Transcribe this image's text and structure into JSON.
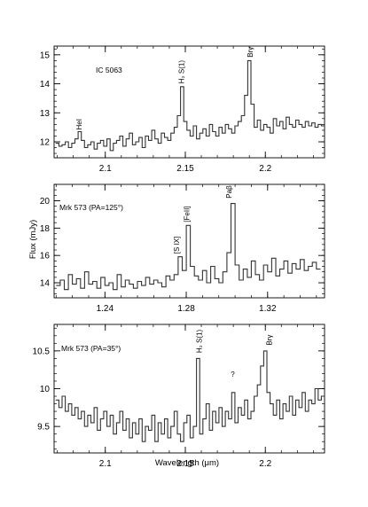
{
  "figure": {
    "ylabel": "Flux (mJy)",
    "xlabel": "Wavelength (μm)"
  },
  "chart_data": [
    {
      "type": "line",
      "title": "IC 5063",
      "xlim": [
        2.068,
        2.237
      ],
      "ylim": [
        11.45,
        15.3
      ],
      "xticks": [
        2.1,
        2.15,
        2.2
      ],
      "xtick_labels": [
        "2.1",
        "2.15",
        "2.2"
      ],
      "yticks": [
        12,
        13,
        14,
        15
      ],
      "ytick_labels": [
        "12",
        "13",
        "14",
        "15"
      ],
      "annotations": [
        {
          "text": "HeI",
          "x": 2.0835,
          "y": 12.35
        },
        {
          "text": "H₂ S(1)",
          "x": 2.1475,
          "y": 13.95
        },
        {
          "text": "Brγ",
          "x": 2.1905,
          "y": 14.85
        }
      ],
      "series": [
        {
          "x": [
            2.07,
            2.072,
            2.074,
            2.076,
            2.078,
            2.08,
            2.082,
            2.084,
            2.086,
            2.088,
            2.09,
            2.092,
            2.094,
            2.096,
            2.098,
            2.1,
            2.102,
            2.104,
            2.106,
            2.108,
            2.11,
            2.112,
            2.114,
            2.116,
            2.118,
            2.12,
            2.122,
            2.124,
            2.126,
            2.128,
            2.13,
            2.132,
            2.134,
            2.136,
            2.138,
            2.14,
            2.142,
            2.144,
            2.146,
            2.148,
            2.15,
            2.152,
            2.154,
            2.156,
            2.158,
            2.16,
            2.162,
            2.164,
            2.166,
            2.168,
            2.17,
            2.172,
            2.174,
            2.176,
            2.178,
            2.18,
            2.182,
            2.184,
            2.186,
            2.188,
            2.19,
            2.192,
            2.194,
            2.196,
            2.198,
            2.2,
            2.202,
            2.204,
            2.206,
            2.208,
            2.21,
            2.212,
            2.214,
            2.216,
            2.218,
            2.22,
            2.222,
            2.224,
            2.226,
            2.228,
            2.23,
            2.232,
            2.234,
            2.236
          ],
          "y": [
            11.95,
            11.85,
            11.9,
            12.0,
            11.8,
            11.95,
            12.1,
            12.35,
            12.05,
            11.8,
            11.9,
            12.0,
            11.75,
            11.95,
            12.05,
            11.85,
            12.1,
            11.7,
            11.95,
            12.05,
            12.2,
            11.85,
            12.1,
            12.3,
            11.9,
            12.0,
            12.15,
            11.8,
            12.2,
            12.05,
            12.4,
            12.1,
            11.95,
            12.3,
            12.15,
            12.05,
            12.3,
            12.5,
            12.9,
            13.9,
            12.7,
            12.4,
            12.2,
            12.55,
            12.1,
            12.3,
            12.45,
            12.2,
            12.6,
            12.35,
            12.2,
            12.5,
            12.3,
            12.6,
            12.45,
            12.3,
            12.55,
            12.7,
            12.9,
            13.6,
            14.8,
            13.3,
            12.5,
            12.75,
            12.4,
            12.6,
            12.5,
            12.3,
            12.8,
            12.55,
            12.7,
            12.45,
            12.85,
            12.6,
            12.5,
            12.75,
            12.6,
            12.5,
            12.7,
            12.55,
            12.65,
            12.5,
            12.6,
            12.55
          ]
        }
      ]
    },
    {
      "type": "line",
      "title": "Mrk 573 (PA=125°)",
      "xlim": [
        1.215,
        1.348
      ],
      "ylim": [
        12.9,
        21.2
      ],
      "xticks": [
        1.24,
        1.28,
        1.32
      ],
      "xtick_labels": [
        "1.24",
        "1.28",
        "1.32"
      ],
      "yticks": [
        14,
        16,
        18,
        20
      ],
      "ytick_labels": [
        "14",
        "16",
        "18",
        "20"
      ],
      "annotations": [
        {
          "text": "[S IX]",
          "x": 1.2752,
          "y": 16.0
        },
        {
          "text": "[FeII]",
          "x": 1.2803,
          "y": 18.3
        },
        {
          "text": "Paβ",
          "x": 1.3008,
          "y": 20.05
        }
      ],
      "series": [
        {
          "x": [
            1.217,
            1.219,
            1.221,
            1.223,
            1.225,
            1.227,
            1.229,
            1.231,
            1.233,
            1.235,
            1.237,
            1.239,
            1.241,
            1.243,
            1.245,
            1.247,
            1.249,
            1.251,
            1.253,
            1.255,
            1.257,
            1.259,
            1.261,
            1.263,
            1.265,
            1.267,
            1.269,
            1.271,
            1.273,
            1.275,
            1.277,
            1.279,
            1.281,
            1.283,
            1.285,
            1.287,
            1.289,
            1.291,
            1.293,
            1.295,
            1.297,
            1.299,
            1.301,
            1.303,
            1.305,
            1.307,
            1.309,
            1.311,
            1.313,
            1.315,
            1.317,
            1.319,
            1.321,
            1.323,
            1.325,
            1.327,
            1.329,
            1.331,
            1.333,
            1.335,
            1.337,
            1.339,
            1.341,
            1.343,
            1.345
          ],
          "y": [
            13.8,
            14.2,
            13.5,
            14.6,
            13.9,
            14.3,
            13.6,
            14.8,
            13.9,
            14.1,
            13.6,
            14.4,
            13.8,
            14.0,
            13.5,
            14.6,
            13.7,
            14.2,
            13.9,
            13.6,
            14.1,
            13.8,
            14.4,
            13.9,
            14.2,
            14.0,
            13.7,
            14.5,
            14.2,
            14.6,
            15.9,
            14.9,
            18.2,
            15.2,
            14.5,
            14.2,
            14.9,
            14.0,
            15.2,
            14.3,
            14.0,
            14.8,
            16.2,
            19.8,
            15.3,
            14.2,
            15.0,
            14.4,
            15.6,
            14.6,
            14.2,
            15.3,
            14.8,
            15.8,
            14.5,
            15.0,
            15.6,
            14.7,
            15.4,
            15.0,
            15.7,
            14.9,
            15.2,
            15.5,
            15.0
          ]
        }
      ]
    },
    {
      "type": "line",
      "title": "Mrk 573 (PA=35°)",
      "xlim": [
        2.068,
        2.237
      ],
      "ylim": [
        9.15,
        10.85
      ],
      "xticks": [
        2.1,
        2.15,
        2.2
      ],
      "xtick_labels": [
        "2.1",
        "2.15",
        "2.2"
      ],
      "yticks": [
        9.5,
        10,
        10.5
      ],
      "ytick_labels": [
        "9.5",
        "10",
        "10.5"
      ],
      "annotations": [
        {
          "text": "H₂ S(1)",
          "x": 2.1585,
          "y": 10.45
        },
        {
          "text": "?",
          "x": 2.1795,
          "y": 10.1
        },
        {
          "text": "Brγ",
          "x": 2.2025,
          "y": 10.55
        }
      ],
      "series": [
        {
          "x": [
            2.07,
            2.072,
            2.074,
            2.076,
            2.078,
            2.08,
            2.082,
            2.084,
            2.086,
            2.088,
            2.09,
            2.092,
            2.094,
            2.096,
            2.098,
            2.1,
            2.102,
            2.104,
            2.106,
            2.108,
            2.11,
            2.112,
            2.114,
            2.116,
            2.118,
            2.12,
            2.122,
            2.124,
            2.126,
            2.128,
            2.13,
            2.132,
            2.134,
            2.136,
            2.138,
            2.14,
            2.142,
            2.144,
            2.146,
            2.148,
            2.15,
            2.152,
            2.154,
            2.156,
            2.158,
            2.16,
            2.162,
            2.164,
            2.166,
            2.168,
            2.17,
            2.172,
            2.174,
            2.176,
            2.178,
            2.18,
            2.182,
            2.184,
            2.186,
            2.188,
            2.19,
            2.192,
            2.194,
            2.196,
            2.198,
            2.2,
            2.202,
            2.204,
            2.206,
            2.208,
            2.21,
            2.212,
            2.214,
            2.216,
            2.218,
            2.22,
            2.222,
            2.224,
            2.226,
            2.228,
            2.23,
            2.232,
            2.234,
            2.236
          ],
          "y": [
            9.85,
            9.75,
            9.9,
            9.7,
            9.8,
            9.65,
            9.75,
            9.6,
            9.7,
            9.5,
            9.65,
            9.55,
            9.75,
            9.45,
            9.6,
            9.7,
            9.5,
            9.65,
            9.4,
            9.55,
            9.7,
            9.45,
            9.6,
            9.35,
            9.55,
            9.4,
            9.6,
            9.3,
            9.5,
            9.45,
            9.65,
            9.3,
            9.55,
            9.4,
            9.6,
            9.35,
            9.5,
            9.7,
            9.4,
            9.3,
            9.55,
            9.65,
            9.35,
            9.5,
            10.4,
            9.4,
            9.6,
            9.8,
            9.45,
            9.7,
            9.55,
            9.75,
            9.5,
            9.7,
            9.6,
            9.95,
            9.55,
            9.75,
            9.65,
            9.85,
            9.6,
            9.7,
            9.9,
            10.05,
            10.3,
            10.5,
            9.95,
            9.8,
            9.65,
            9.85,
            9.6,
            9.8,
            9.7,
            9.9,
            9.65,
            9.85,
            9.75,
            9.95,
            9.7,
            9.85,
            9.8,
            10.0,
            9.85,
            9.9
          ]
        }
      ]
    }
  ]
}
